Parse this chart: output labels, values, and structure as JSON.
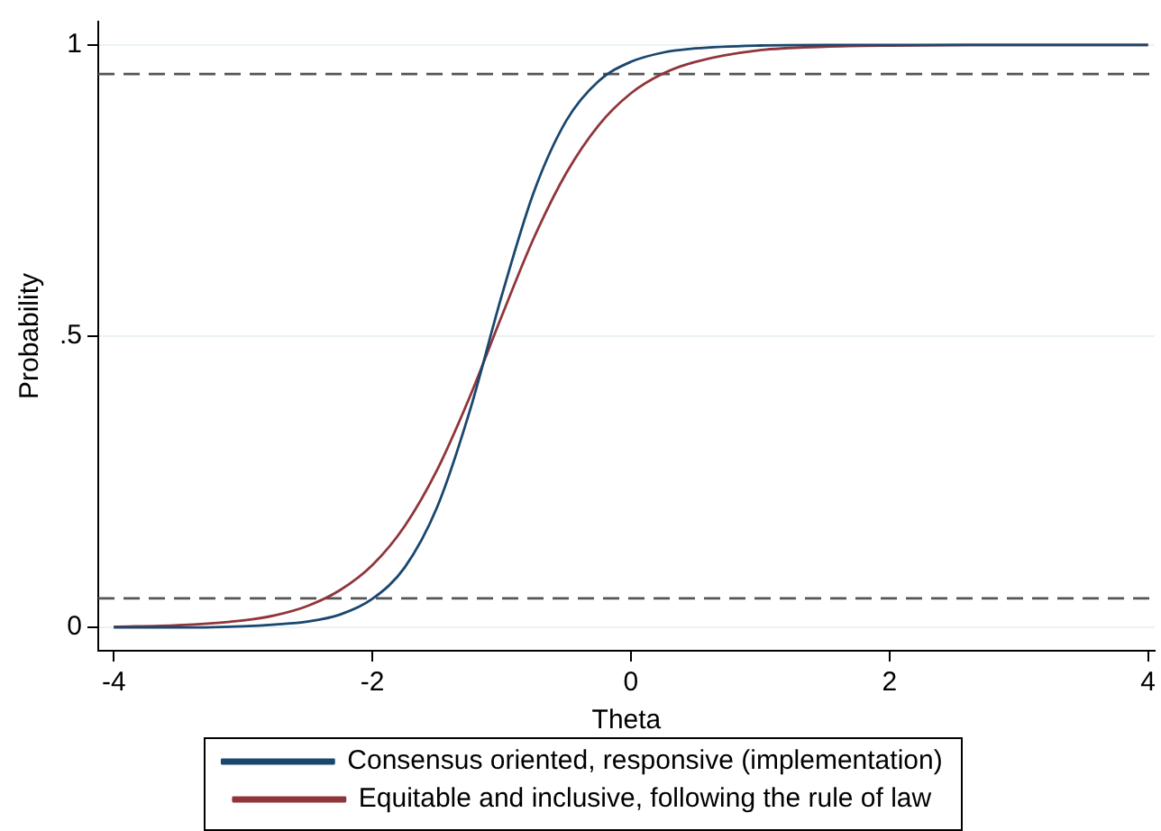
{
  "chart_data": {
    "type": "line",
    "xlabel": "Theta",
    "ylabel": "Probability",
    "x": [
      -4,
      -3.5,
      -3,
      -2.75,
      -2.5,
      -2.25,
      -2,
      -1.75,
      -1.5,
      -1.25,
      -1,
      -0.75,
      -0.5,
      -0.25,
      0,
      0.25,
      0.5,
      1,
      1.5,
      2,
      3,
      4
    ],
    "series": [
      {
        "name": "Consensus oriented, responsive (implementation)",
        "color": "#1a476f",
        "values": [
          0,
          0,
          0.002,
          0.005,
          0.01,
          0.022,
          0.049,
          0.103,
          0.206,
          0.369,
          0.569,
          0.748,
          0.87,
          0.938,
          0.971,
          0.987,
          0.994,
          0.999,
          1,
          1,
          1,
          1
        ]
      },
      {
        "name": "Equitable and inclusive, following the rule of law",
        "color": "#90353b",
        "values": [
          0.001,
          0.004,
          0.012,
          0.021,
          0.037,
          0.064,
          0.107,
          0.174,
          0.27,
          0.394,
          0.534,
          0.669,
          0.78,
          0.862,
          0.917,
          0.951,
          0.971,
          0.991,
          0.997,
          0.999,
          1,
          1
        ]
      }
    ],
    "xlim": [
      -4.12,
      4.05
    ],
    "xticks": [
      -4,
      -2,
      0,
      2,
      4
    ],
    "ylim": [
      -0.04,
      1.04
    ],
    "yticks": [
      {
        "value": 0,
        "label": "0"
      },
      {
        "value": 0.5,
        "label": ".5"
      },
      {
        "value": 1,
        "label": "1"
      }
    ],
    "ref_lines": [
      {
        "axis": "y",
        "value": 0.05,
        "color": "#555555",
        "line_style": "dashed"
      },
      {
        "axis": "y",
        "value": 0.95,
        "color": "#555555",
        "line_style": "dashed"
      }
    ],
    "grid": "y",
    "legend": "bottom",
    "marker": "none",
    "line_style": "solid"
  }
}
